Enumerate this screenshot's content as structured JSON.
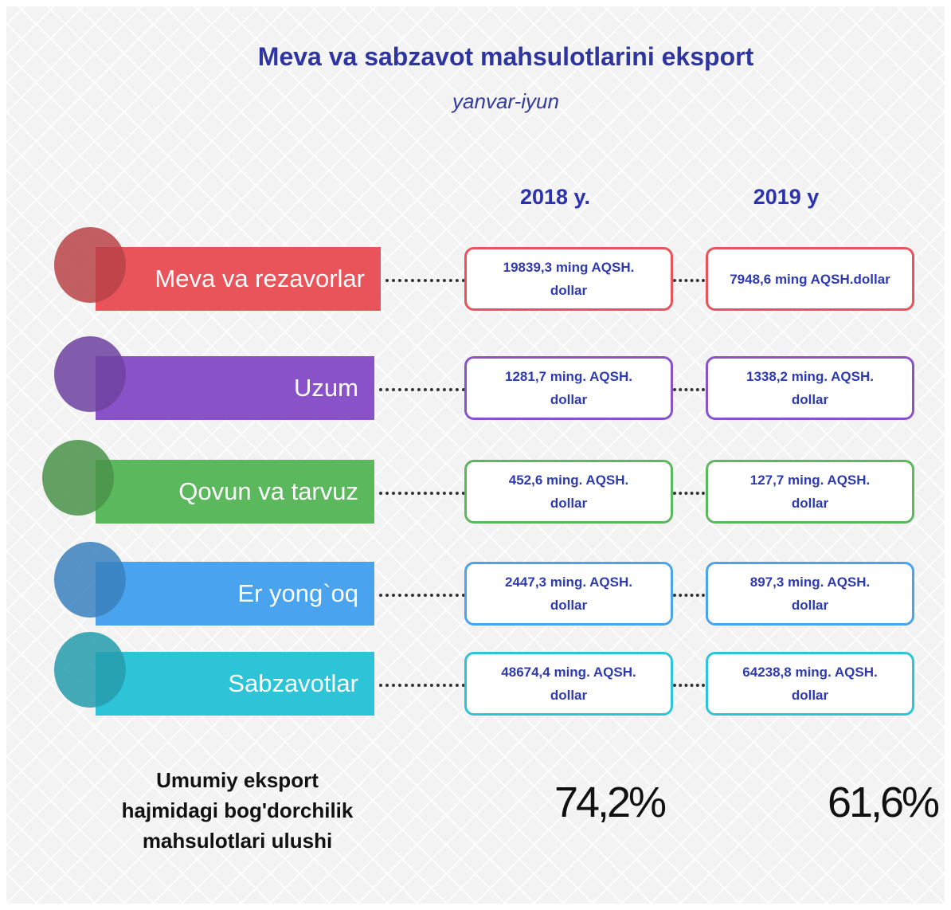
{
  "header": {
    "title": "Meva va sabzavot mahsulotlarini eksport",
    "subtitle": "yanvar-iyun"
  },
  "columns": [
    "2018 y.",
    "2019 y"
  ],
  "rows": [
    {
      "label": "Meva va rezavorlar",
      "color": "#e8545a",
      "v2018": [
        "19839,3 ming AQSH.",
        "dollar"
      ],
      "v2019": [
        "7948,6 ming AQSH.dollar"
      ]
    },
    {
      "label": "Uzum",
      "color": "#8a52c8",
      "v2018": [
        "1281,7 ming. AQSH.",
        "dollar"
      ],
      "v2019": [
        "1338,2 ming. AQSH.",
        "dollar"
      ]
    },
    {
      "label": "Qovun va tarvuz",
      "color": "#5cb85c",
      "v2018": [
        "452,6 ming. AQSH.",
        "dollar"
      ],
      "v2019": [
        "127,7  ming. AQSH.",
        "dollar"
      ]
    },
    {
      "label": "Er yong`oq",
      "color": "#4aa3ee",
      "v2018": [
        "2447,3 ming. AQSH.",
        "dollar"
      ],
      "v2019": [
        "897,3  ming. AQSH.",
        "dollar"
      ]
    },
    {
      "label": "Sabzavotlar",
      "color": "#2ec4d8",
      "v2018": [
        "48674,4 ming. AQSH.",
        "dollar"
      ],
      "v2019": [
        "64238,8  ming. AQSH.",
        "dollar"
      ]
    }
  ],
  "footer": {
    "label": [
      "Umumiy eksport",
      "hajmidagi bog'dorchilik",
      "mahsulotlari ulushi"
    ],
    "share2018": "74,2%",
    "share2019": "61,6%"
  }
}
